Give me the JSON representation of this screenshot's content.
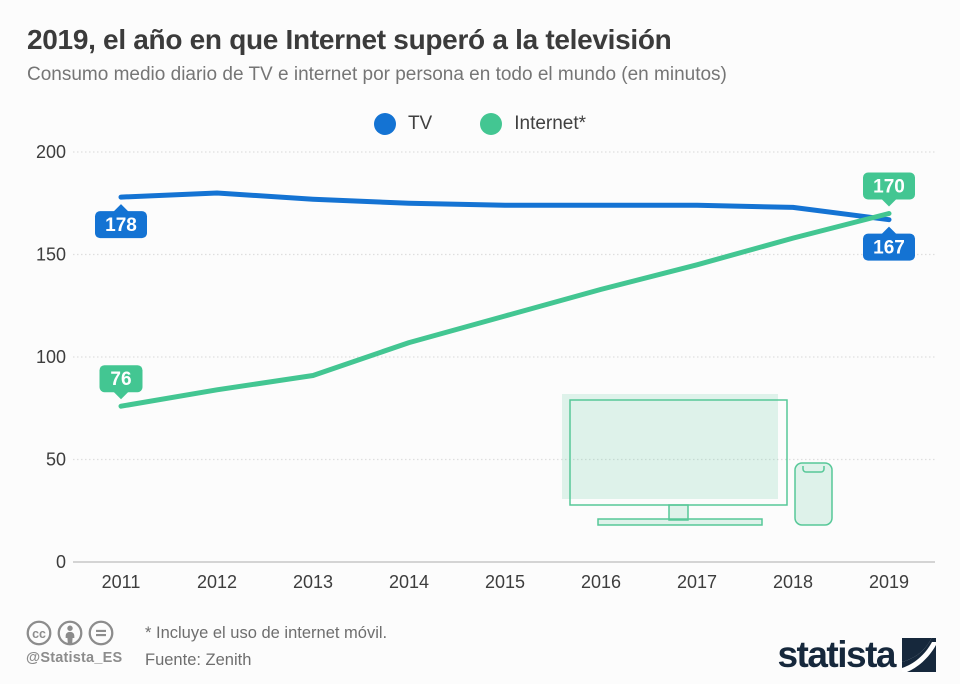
{
  "header": {
    "title": "2019, el año en que Internet superó a la televisión",
    "subtitle": "Consumo medio diario de TV e internet por persona en todo el mundo (en minutos)"
  },
  "legend": {
    "items": [
      {
        "label": "TV",
        "color": "#1473d3"
      },
      {
        "label": "Internet*",
        "color": "#43c692"
      }
    ]
  },
  "chart_data": {
    "type": "line",
    "categories": [
      "2011",
      "2012",
      "2013",
      "2014",
      "2015",
      "2016",
      "2017",
      "2018",
      "2019"
    ],
    "series": [
      {
        "name": "TV",
        "color": "#1473d3",
        "values": [
          178,
          180,
          177,
          175,
          174,
          174,
          174,
          173,
          167
        ]
      },
      {
        "name": "Internet",
        "color": "#43c692",
        "values": [
          76,
          84,
          91,
          107,
          120,
          133,
          145,
          158,
          170
        ]
      }
    ],
    "title": "2019, el año en que Internet superó a la televisión",
    "xlabel": "",
    "ylabel": "",
    "ylim": [
      0,
      200
    ],
    "yticks": [
      0,
      50,
      100,
      150,
      200
    ],
    "grid": true,
    "legend_position": "top",
    "value_labels": [
      {
        "series": "TV",
        "point": "first",
        "text": "178",
        "placement": "below"
      },
      {
        "series": "TV",
        "point": "last",
        "text": "167",
        "placement": "below"
      },
      {
        "series": "Internet",
        "point": "first",
        "text": "76",
        "placement": "above"
      },
      {
        "series": "Internet",
        "point": "last",
        "text": "170",
        "placement": "above"
      }
    ]
  },
  "footer": {
    "footnote": "* Incluye el uso de internet móvil.",
    "source": "Fuente: Zenith",
    "handle": "@Statista_ES",
    "brand": "statista"
  },
  "colors": {
    "tv": "#1473d3",
    "internet": "#43c692",
    "background": "#fcfcfc",
    "title_text": "#3b3b3b",
    "subtitle_text": "#757575",
    "axis_text": "#3d3d3d",
    "grid_line": "#dedede",
    "baseline": "#c6c6c6",
    "footer_text": "#6e6e6e",
    "license_gray": "#8c8c8c",
    "brand_navy": "#16283c",
    "illustration_stroke": "#57c898",
    "illustration_fill": "rgba(90,200,155,0.18)"
  }
}
